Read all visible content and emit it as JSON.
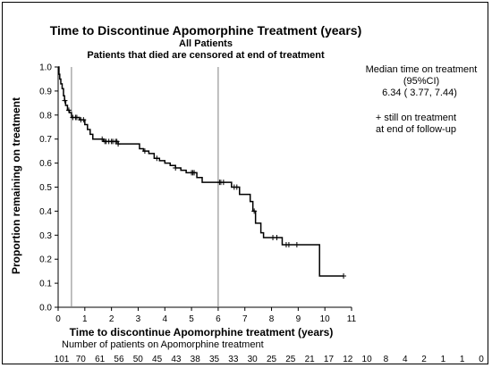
{
  "chart_data": {
    "type": "line",
    "title": "Time to Discontinue Apomorphine Treatment (years)",
    "subtitle_1": "All Patients",
    "subtitle_2": "Patients that died are censored at end of treatment",
    "xlabel": "Time to discontinue Apomorphine treatment (years)",
    "ylabel": "Proportion remaining on treatment",
    "xlim": [
      0,
      11
    ],
    "ylim": [
      0,
      1
    ],
    "x_ticks": [
      "0",
      "1",
      "2",
      "3",
      "4",
      "5",
      "6",
      "7",
      "8",
      "9",
      "10",
      "11"
    ],
    "y_ticks": [
      "0.0",
      "0.1",
      "0.2",
      "0.3",
      "0.4",
      "0.5",
      "0.6",
      "0.7",
      "0.8",
      "0.9",
      "1.0"
    ],
    "reference_lines_x": [
      0.5,
      6
    ],
    "series": [
      {
        "steps": [
          [
            0,
            1.0
          ],
          [
            0.03,
            0.97
          ],
          [
            0.06,
            0.95
          ],
          [
            0.1,
            0.93
          ],
          [
            0.15,
            0.91
          ],
          [
            0.2,
            0.88
          ],
          [
            0.24,
            0.86
          ],
          [
            0.28,
            0.84
          ],
          [
            0.35,
            0.82
          ],
          [
            0.42,
            0.81
          ],
          [
            0.5,
            0.79
          ],
          [
            0.6,
            0.79
          ],
          [
            0.8,
            0.78
          ],
          [
            1.0,
            0.76
          ],
          [
            1.1,
            0.74
          ],
          [
            1.2,
            0.72
          ],
          [
            1.3,
            0.7
          ],
          [
            1.55,
            0.7
          ],
          [
            1.7,
            0.69
          ],
          [
            2.25,
            0.68
          ],
          [
            2.95,
            0.68
          ],
          [
            3.05,
            0.66
          ],
          [
            3.2,
            0.65
          ],
          [
            3.4,
            0.64
          ],
          [
            3.6,
            0.62
          ],
          [
            3.8,
            0.61
          ],
          [
            4.0,
            0.6
          ],
          [
            4.2,
            0.59
          ],
          [
            4.4,
            0.58
          ],
          [
            4.6,
            0.57
          ],
          [
            4.8,
            0.56
          ],
          [
            5.2,
            0.54
          ],
          [
            5.4,
            0.52
          ],
          [
            6.5,
            0.5
          ],
          [
            6.8,
            0.47
          ],
          [
            7.2,
            0.44
          ],
          [
            7.3,
            0.4
          ],
          [
            7.4,
            0.35
          ],
          [
            7.6,
            0.31
          ],
          [
            7.7,
            0.29
          ],
          [
            8.4,
            0.26
          ],
          [
            9.8,
            0.13
          ],
          [
            10.7,
            0.13
          ]
        ],
        "censored_x": [
          0.25,
          0.4,
          0.55,
          0.65,
          0.7,
          0.85,
          0.95,
          1.65,
          1.75,
          1.8,
          1.9,
          2.0,
          2.05,
          2.15,
          2.2,
          2.25,
          3.25,
          3.7,
          4.4,
          5.0,
          5.05,
          5.1,
          6.05,
          6.1,
          6.2,
          6.6,
          6.7,
          7.35,
          8.05,
          8.2,
          8.55,
          8.65,
          8.95,
          10.7
        ]
      }
    ],
    "median_label": "Median time on treatment",
    "median_ci_label": "(95%CI)",
    "median_value": "6.34 (  3.77,    7.44)",
    "legend_line_1": "+ still on treatment",
    "legend_line_2": "at end of follow-up",
    "risk_table_title": "Number of patients on Apomorphine treatment",
    "risk_counts": [
      "101",
      "70",
      "61",
      "56",
      "50",
      "45",
      "43",
      "38",
      "35",
      "33",
      "30",
      "25",
      "25",
      "21",
      "17",
      "12",
      "10",
      "8",
      "4",
      "2",
      "1",
      "1",
      "0"
    ]
  }
}
